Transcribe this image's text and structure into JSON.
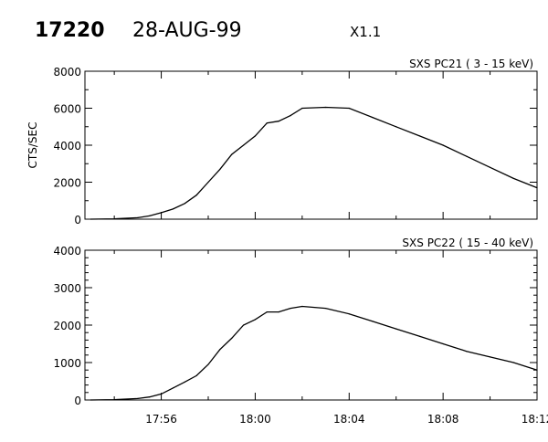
{
  "header": {
    "event_id": "17220",
    "date": "28-AUG-99",
    "flare_class": "X1.1"
  },
  "chart_data": [
    {
      "type": "line",
      "title": "SXS PC21  (  3 - 15 keV)",
      "ylabel": "CTS/SEC",
      "xlabel": "",
      "xlim": [
        "17:52:45",
        "18:12:00"
      ],
      "ylim": [
        0,
        8000
      ],
      "yticks": [
        "0",
        "2000",
        "4000",
        "6000",
        "8000"
      ],
      "xticks": [],
      "grid": false,
      "color": "#000000",
      "x": [
        "17:53:00",
        "17:54:00",
        "17:55:00",
        "17:55:30",
        "17:56:00",
        "17:56:30",
        "17:57:00",
        "17:57:30",
        "17:58:00",
        "17:58:30",
        "17:59:00",
        "17:59:30",
        "18:00:00",
        "18:00:30",
        "18:01:00",
        "18:01:30",
        "18:02:00",
        "18:03:00",
        "18:04:00",
        "18:05:00",
        "18:06:00",
        "18:07:00",
        "18:08:00",
        "18:09:00",
        "18:10:00",
        "18:11:00",
        "18:12:00"
      ],
      "y": [
        0,
        20,
        80,
        180,
        350,
        550,
        850,
        1300,
        2000,
        2700,
        3500,
        4000,
        4500,
        5200,
        5300,
        5600,
        6000,
        6050,
        6000,
        5500,
        5000,
        4500,
        4000,
        3400,
        2800,
        2200,
        1700
      ]
    },
    {
      "type": "line",
      "title": "SXS PC22  ( 15 - 40 keV)",
      "ylabel": "",
      "xlabel": "",
      "xlim": [
        "17:52:45",
        "18:12:00"
      ],
      "ylim": [
        0,
        4000
      ],
      "yticks": [
        "0",
        "1000",
        "2000",
        "3000",
        "4000"
      ],
      "xticks": [
        "17:56",
        "18:00",
        "18:04",
        "18:08",
        "18:12"
      ],
      "grid": false,
      "color": "#000000",
      "x": [
        "17:53:00",
        "17:54:00",
        "17:55:00",
        "17:55:30",
        "17:56:00",
        "17:56:30",
        "17:57:00",
        "17:57:30",
        "17:58:00",
        "17:58:30",
        "17:59:00",
        "17:59:30",
        "18:00:00",
        "18:00:30",
        "18:01:00",
        "18:01:30",
        "18:02:00",
        "18:03:00",
        "18:04:00",
        "18:05:00",
        "18:06:00",
        "18:07:00",
        "18:08:00",
        "18:09:00",
        "18:10:00",
        "18:11:00",
        "18:12:00"
      ],
      "y": [
        0,
        10,
        40,
        80,
        160,
        320,
        480,
        650,
        950,
        1350,
        1650,
        2000,
        2150,
        2350,
        2350,
        2450,
        2500,
        2450,
        2300,
        2100,
        1900,
        1700,
        1500,
        1300,
        1150,
        1000,
        800
      ]
    }
  ]
}
